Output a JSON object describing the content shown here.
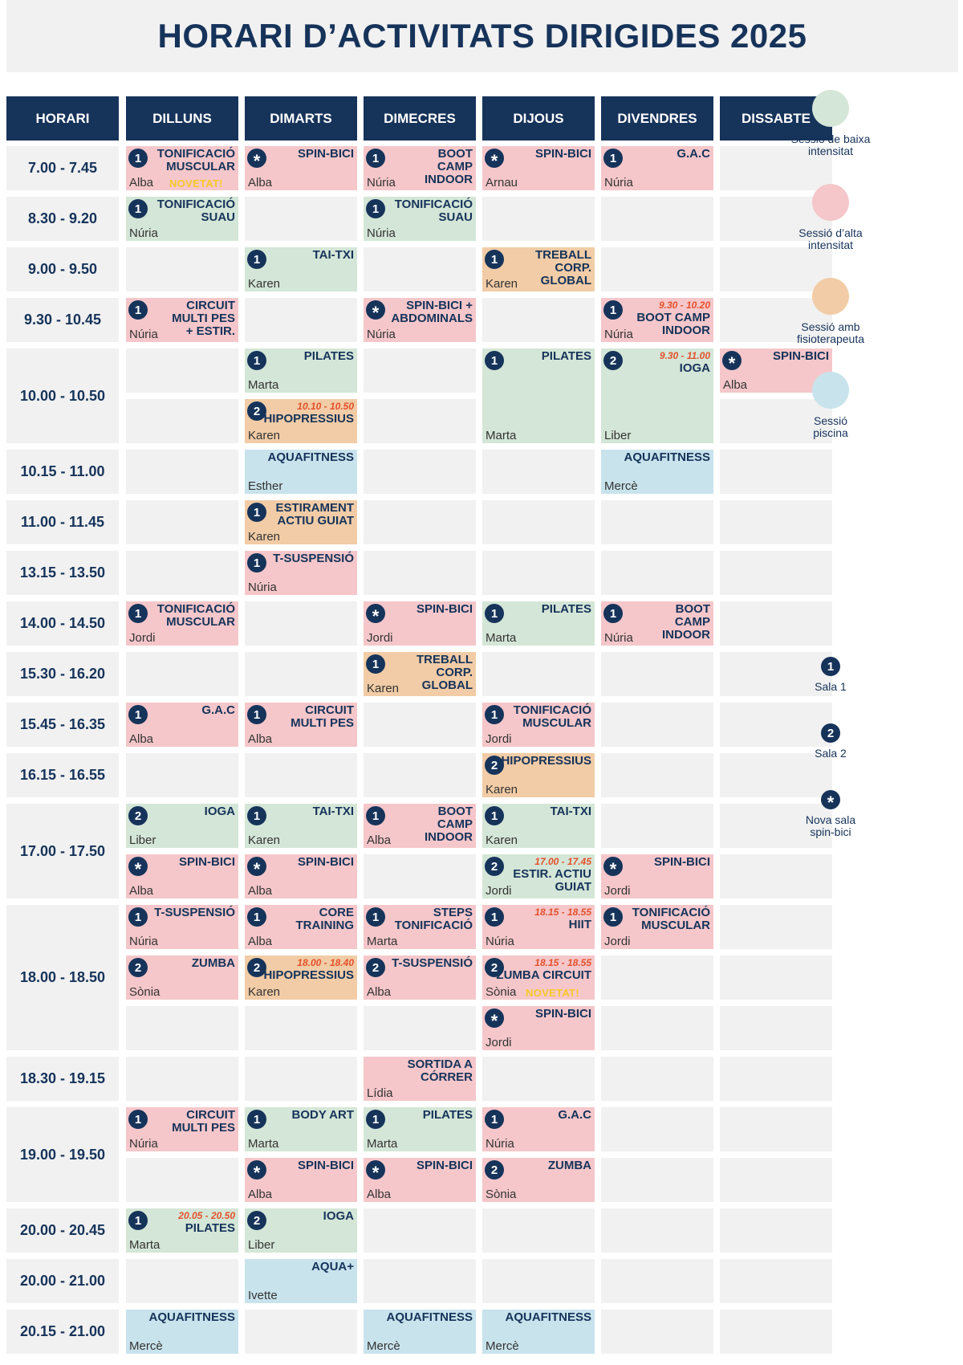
{
  "title": "HORARI D’ACTIVITATS DIRIGIDES 2025",
  "colors": {
    "header": "#16335a",
    "cell": "#f1f1f1",
    "low": "#d4e6d7",
    "high": "#f5c7ca",
    "physio": "#f1cca6",
    "pool": "#c8e3ec",
    "time_note": "#e4512b",
    "novetat": "#f6c928"
  },
  "headers": [
    "HORARI",
    "DILLUNS",
    "DIMARTS",
    "DIMECRES",
    "DIJOUS",
    "DIVENDRES",
    "DISSABTE"
  ],
  "time_rows": [
    {
      "label": "7.00 - 7.45",
      "sub": 1
    },
    {
      "label": "8.30 - 9.20",
      "sub": 1
    },
    {
      "label": "9.00 - 9.50",
      "sub": 1
    },
    {
      "label": "9.30 - 10.45",
      "sub": 1
    },
    {
      "label": "10.00 - 10.50",
      "sub": 2
    },
    {
      "label": "10.15 - 11.00",
      "sub": 1
    },
    {
      "label": "11.00 - 11.45",
      "sub": 1
    },
    {
      "label": "13.15 - 13.50",
      "sub": 1
    },
    {
      "label": "14.00 - 14.50",
      "sub": 1
    },
    {
      "label": "15.30 - 16.20",
      "sub": 1
    },
    {
      "label": "15.45 - 16.35",
      "sub": 1
    },
    {
      "label": "16.15 - 16.55",
      "sub": 1
    },
    {
      "label": "17.00 - 17.50",
      "sub": 2
    },
    {
      "label": "18.00 - 18.50",
      "sub": 3
    },
    {
      "label": "18.30 - 19.15",
      "sub": 1
    },
    {
      "label": "19.00 - 19.50",
      "sub": 2
    },
    {
      "label": "20.00 - 20.45",
      "sub": 1
    },
    {
      "label": "20.00 - 21.00",
      "sub": 1
    },
    {
      "label": "20.15 - 21.00",
      "sub": 1
    }
  ],
  "activities": [
    {
      "r": 0,
      "s": 0,
      "d": 0,
      "type": "high",
      "badge": "1",
      "name": "TONIFICACIÓ\nMUSCULAR",
      "inst": "Alba",
      "tag": "NOVETAT!"
    },
    {
      "r": 0,
      "s": 0,
      "d": 1,
      "type": "high",
      "badge": "*",
      "name": "SPIN-BICI",
      "inst": "Alba"
    },
    {
      "r": 0,
      "s": 0,
      "d": 2,
      "type": "high",
      "badge": "1",
      "name": "BOOT\nCAMP\nINDOOR",
      "inst": "Núria"
    },
    {
      "r": 0,
      "s": 0,
      "d": 3,
      "type": "high",
      "badge": "*",
      "name": "SPIN-BICI",
      "inst": "Arnau"
    },
    {
      "r": 0,
      "s": 0,
      "d": 4,
      "type": "high",
      "badge": "1",
      "name": "G.A.C",
      "inst": "Núria"
    },
    {
      "r": 1,
      "s": 0,
      "d": 0,
      "type": "low",
      "badge": "1",
      "name": "TONIFICACIÓ\nSUAU",
      "inst": "Núria"
    },
    {
      "r": 1,
      "s": 0,
      "d": 2,
      "type": "low",
      "badge": "1",
      "name": "TONIFICACIÓ\nSUAU",
      "inst": "Núria"
    },
    {
      "r": 2,
      "s": 0,
      "d": 1,
      "type": "low",
      "badge": "1",
      "name": "TAI-TXI",
      "inst": "Karen"
    },
    {
      "r": 2,
      "s": 0,
      "d": 3,
      "type": "physio",
      "badge": "1",
      "name": "TREBALL\nCORP.\nGLOBAL",
      "inst": "Karen"
    },
    {
      "r": 3,
      "s": 0,
      "d": 0,
      "type": "high",
      "badge": "1",
      "name": "CIRCUIT\nMULTI PES\n+ ESTIR.",
      "inst": "Núria"
    },
    {
      "r": 3,
      "s": 0,
      "d": 2,
      "type": "high",
      "badge": "*",
      "name": "SPIN-BICI +\nABDOMINALS",
      "inst": "Núria"
    },
    {
      "r": 3,
      "s": 0,
      "d": 4,
      "type": "high",
      "badge": "1",
      "time": "9.30 - 10.20",
      "name": "BOOT CAMP\nINDOOR",
      "inst": "Núria"
    },
    {
      "r": 4,
      "s": 0,
      "d": 1,
      "type": "low",
      "badge": "1",
      "name": "PILATES",
      "inst": "Marta"
    },
    {
      "r": 4,
      "s": 1,
      "d": 1,
      "type": "physio",
      "badge": "2",
      "time": "10.10 - 10.50",
      "name": "HIPOPRESSIUS",
      "inst": "Karen"
    },
    {
      "r": 4,
      "s": 0,
      "d": 3,
      "span": 2,
      "type": "low",
      "badge": "1",
      "name": "PILATES",
      "inst": "Marta"
    },
    {
      "r": 4,
      "s": 0,
      "d": 4,
      "span": 2,
      "type": "low",
      "badge": "2",
      "time": "9.30 - 11.00",
      "name": "IOGA",
      "inst": "Liber"
    },
    {
      "r": 4,
      "s": 0,
      "d": 5,
      "type": "high",
      "badge": "*",
      "name": "SPIN-BICI",
      "inst": "Alba"
    },
    {
      "r": 5,
      "s": 0,
      "d": 1,
      "type": "pool",
      "name": "AQUAFITNESS",
      "inst": "Esther"
    },
    {
      "r": 5,
      "s": 0,
      "d": 4,
      "type": "pool",
      "name": "AQUAFITNESS",
      "inst": "Mercè"
    },
    {
      "r": 6,
      "s": 0,
      "d": 1,
      "type": "physio",
      "badge": "1",
      "name": "ESTIRAMENT\nACTIU GUIAT",
      "inst": "Karen"
    },
    {
      "r": 7,
      "s": 0,
      "d": 1,
      "type": "high",
      "badge": "1",
      "name": "T-SUSPENSIÓ",
      "inst": "Núria"
    },
    {
      "r": 8,
      "s": 0,
      "d": 0,
      "type": "high",
      "badge": "1",
      "name": "TONIFICACIÓ\nMUSCULAR",
      "inst": "Jordi"
    },
    {
      "r": 8,
      "s": 0,
      "d": 2,
      "type": "high",
      "badge": "*",
      "name": "SPIN-BICI",
      "inst": "Jordi"
    },
    {
      "r": 8,
      "s": 0,
      "d": 3,
      "type": "low",
      "badge": "1",
      "name": "PILATES",
      "inst": "Marta"
    },
    {
      "r": 8,
      "s": 0,
      "d": 4,
      "type": "high",
      "badge": "1",
      "name": "BOOT\nCAMP\nINDOOR",
      "inst": "Núria"
    },
    {
      "r": 9,
      "s": 0,
      "d": 2,
      "type": "physio",
      "badge": "1",
      "name": "TREBALL\nCORP.\nGLOBAL",
      "inst": "Karen"
    },
    {
      "r": 10,
      "s": 0,
      "d": 0,
      "type": "high",
      "badge": "1",
      "name": "G.A.C",
      "inst": "Alba"
    },
    {
      "r": 10,
      "s": 0,
      "d": 1,
      "type": "high",
      "badge": "1",
      "name": "CIRCUIT\nMULTI PES",
      "inst": "Alba"
    },
    {
      "r": 10,
      "s": 0,
      "d": 3,
      "type": "high",
      "badge": "1",
      "name": "TONIFICACIÓ\nMUSCULAR",
      "inst": "Jordi"
    },
    {
      "r": 11,
      "s": 0,
      "d": 3,
      "type": "physio",
      "badge": "2",
      "name": "HIPOPRESSIUS",
      "inst": "Karen"
    },
    {
      "r": 12,
      "s": 0,
      "d": 0,
      "type": "low",
      "badge": "2",
      "name": "IOGA",
      "inst": "Liber"
    },
    {
      "r": 12,
      "s": 0,
      "d": 1,
      "type": "low",
      "badge": "1",
      "name": "TAI-TXI",
      "inst": "Karen"
    },
    {
      "r": 12,
      "s": 0,
      "d": 2,
      "type": "high",
      "badge": "1",
      "name": "BOOT\nCAMP\nINDOOR",
      "inst": "Alba"
    },
    {
      "r": 12,
      "s": 0,
      "d": 3,
      "type": "low",
      "badge": "1",
      "name": "TAI-TXI",
      "inst": "Karen"
    },
    {
      "r": 12,
      "s": 1,
      "d": 0,
      "type": "high",
      "badge": "*",
      "name": "SPIN-BICI",
      "inst": "Alba"
    },
    {
      "r": 12,
      "s": 1,
      "d": 1,
      "type": "high",
      "badge": "*",
      "name": "SPIN-BICI",
      "inst": "Alba"
    },
    {
      "r": 12,
      "s": 1,
      "d": 3,
      "type": "low",
      "badge": "2",
      "time": "17.00 - 17.45",
      "name": "ESTIR. ACTIU\nGUIAT",
      "inst": "Jordi"
    },
    {
      "r": 12,
      "s": 1,
      "d": 4,
      "type": "high",
      "badge": "*",
      "name": "SPIN-BICI",
      "inst": "Jordi"
    },
    {
      "r": 13,
      "s": 0,
      "d": 0,
      "type": "high",
      "badge": "1",
      "name": "T-SUSPENSIÓ",
      "inst": "Núria"
    },
    {
      "r": 13,
      "s": 0,
      "d": 1,
      "type": "high",
      "badge": "1",
      "name": "CORE\nTRAINING",
      "inst": "Alba"
    },
    {
      "r": 13,
      "s": 0,
      "d": 2,
      "type": "high",
      "badge": "1",
      "name": "STEPS\nTONIFICACIÓ",
      "inst": "Marta"
    },
    {
      "r": 13,
      "s": 0,
      "d": 3,
      "type": "high",
      "badge": "1",
      "time": "18.15 - 18.55",
      "name": "HIIT",
      "inst": "Núria"
    },
    {
      "r": 13,
      "s": 0,
      "d": 4,
      "type": "high",
      "badge": "1",
      "name": "TONIFICACIÓ\nMUSCULAR",
      "inst": "Jordi"
    },
    {
      "r": 13,
      "s": 1,
      "d": 0,
      "type": "high",
      "badge": "2",
      "name": "ZUMBA",
      "inst": "Sònia"
    },
    {
      "r": 13,
      "s": 1,
      "d": 1,
      "type": "physio",
      "badge": "2",
      "time": "18.00 - 18.40",
      "name": "HIPOPRESSIUS",
      "inst": "Karen"
    },
    {
      "r": 13,
      "s": 1,
      "d": 2,
      "type": "high",
      "badge": "2",
      "name": "T-SUSPENSIÓ",
      "inst": "Alba"
    },
    {
      "r": 13,
      "s": 1,
      "d": 3,
      "type": "high",
      "badge": "2",
      "time": "18.15 - 18.55",
      "name": "ZUMBA CIRCUIT",
      "inst": "Sònia",
      "tag": "NOVETAT!"
    },
    {
      "r": 13,
      "s": 2,
      "d": 3,
      "type": "high",
      "badge": "*",
      "name": "SPIN-BICI",
      "inst": "Jordi"
    },
    {
      "r": 14,
      "s": 0,
      "d": 2,
      "type": "high",
      "name": "SORTIDA A\nCÓRRER",
      "inst": "Lídia"
    },
    {
      "r": 15,
      "s": 0,
      "d": 0,
      "type": "high",
      "badge": "1",
      "name": "CIRCUIT\nMULTI PES",
      "inst": "Núria"
    },
    {
      "r": 15,
      "s": 0,
      "d": 1,
      "type": "low",
      "badge": "1",
      "name": "BODY ART",
      "inst": "Marta"
    },
    {
      "r": 15,
      "s": 0,
      "d": 2,
      "type": "low",
      "badge": "1",
      "name": "PILATES",
      "inst": "Marta"
    },
    {
      "r": 15,
      "s": 0,
      "d": 3,
      "type": "high",
      "badge": "1",
      "name": "G.A.C",
      "inst": "Núria"
    },
    {
      "r": 15,
      "s": 1,
      "d": 1,
      "type": "high",
      "badge": "*",
      "name": "SPIN-BICI",
      "inst": "Alba"
    },
    {
      "r": 15,
      "s": 1,
      "d": 2,
      "type": "high",
      "badge": "*",
      "name": "SPIN-BICI",
      "inst": "Alba"
    },
    {
      "r": 15,
      "s": 1,
      "d": 3,
      "type": "high",
      "badge": "2",
      "name": "ZUMBA",
      "inst": "Sònia"
    },
    {
      "r": 16,
      "s": 0,
      "d": 0,
      "type": "low",
      "badge": "1",
      "time": "20.05 - 20.50",
      "name": "PILATES",
      "inst": "Marta"
    },
    {
      "r": 16,
      "s": 0,
      "d": 1,
      "type": "low",
      "badge": "2",
      "name": "IOGA",
      "inst": "Liber"
    },
    {
      "r": 17,
      "s": 0,
      "d": 1,
      "type": "pool",
      "name": "AQUA+",
      "inst": "Ivette"
    },
    {
      "r": 18,
      "s": 0,
      "d": 0,
      "type": "pool",
      "name": "AQUAFITNESS",
      "inst": "Mercè"
    },
    {
      "r": 18,
      "s": 0,
      "d": 2,
      "type": "pool",
      "name": "AQUAFITNESS",
      "inst": "Mercè"
    },
    {
      "r": 18,
      "s": 0,
      "d": 3,
      "type": "pool",
      "name": "AQUAFITNESS",
      "inst": "Mercè"
    }
  ],
  "legend": {
    "low": "Sessió de baixa\nintensitat",
    "high": "Sessió d’alta\nintensitat",
    "physio": "Sessió amb\nfisioterapeuta",
    "pool": "Sessió\npiscina",
    "sala1_icon": "1",
    "sala1": "Sala 1",
    "sala2_icon": "2",
    "sala2": "Sala 2",
    "spin_icon": "*",
    "spin": "Nova sala\nspin-bici"
  }
}
